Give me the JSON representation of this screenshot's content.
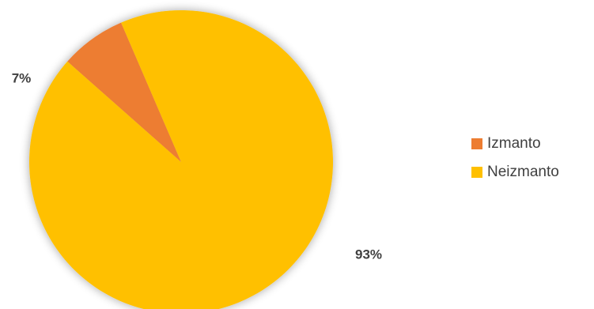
{
  "chart_data": {
    "type": "pie",
    "title": "",
    "series": [
      {
        "slices": [
          {
            "label": "Izmanto",
            "value": 7,
            "data_label": "7%",
            "color": "#ED7D31"
          },
          {
            "label": "Neizmanto",
            "value": 93,
            "data_label": "93%",
            "color": "#FFC000"
          }
        ]
      }
    ],
    "legend_position": "right"
  },
  "legend": {
    "items": [
      {
        "label": "Izmanto",
        "color": "#ED7D31"
      },
      {
        "label": "Neizmanto",
        "color": "#FFC000"
      }
    ]
  }
}
